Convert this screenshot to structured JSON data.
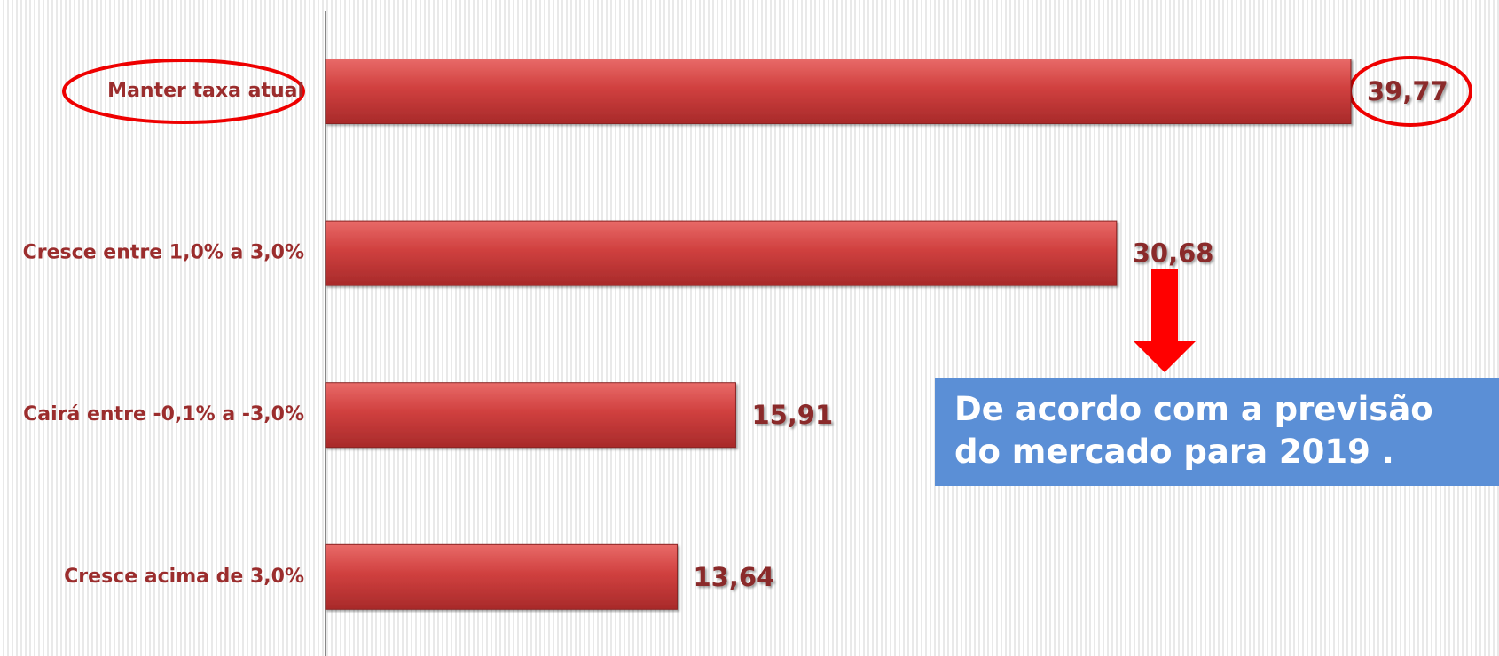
{
  "chart_data": {
    "type": "bar",
    "orientation": "horizontal",
    "categories": [
      "Manter taxa atual",
      "Cresce entre 1,0% a 3,0%",
      "Cairá entre -0,1% a -3,0%",
      "Cresce acima de 3,0%"
    ],
    "values": [
      39.77,
      30.68,
      15.91,
      13.64
    ],
    "value_labels": [
      "39,77",
      "30,68",
      "15,91",
      "13,64"
    ],
    "color": "#d0403f",
    "xlim": [
      0,
      45
    ],
    "annotation": "De acordo com a previsão do mercado para 2019 ."
  }
}
